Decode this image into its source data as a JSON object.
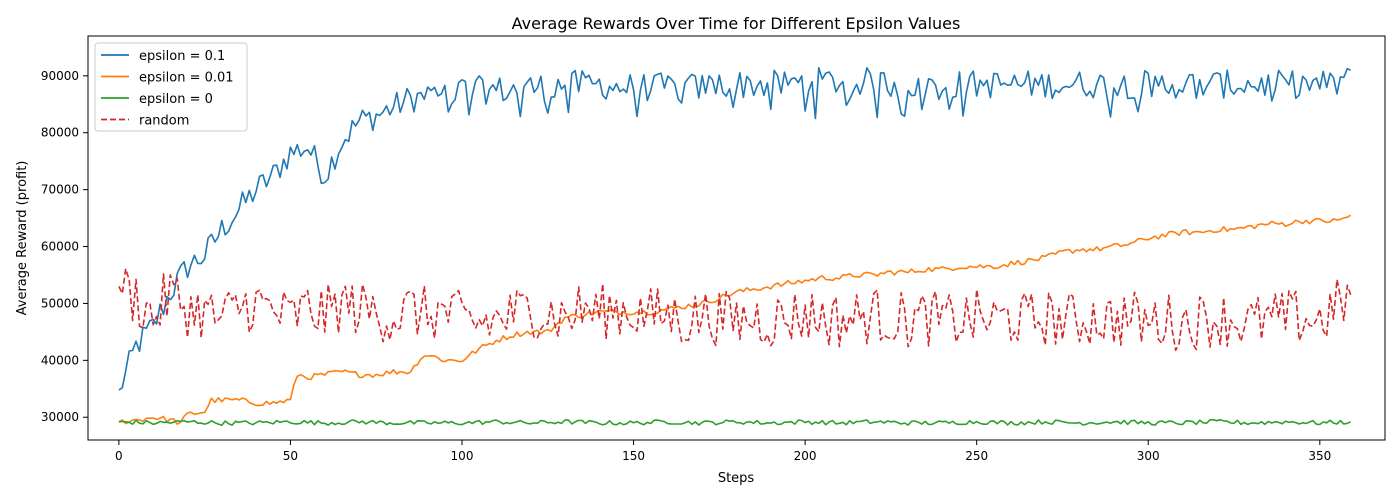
{
  "chart_data": {
    "type": "line",
    "title": "Average Rewards Over Time for Different Epsilon Values",
    "xlabel": "Steps",
    "ylabel": "Average Reward (profit)",
    "xlim": [
      -9,
      369
    ],
    "ylim": [
      26000,
      97000
    ],
    "x_ticks": [
      0,
      50,
      100,
      150,
      200,
      250,
      300,
      350
    ],
    "y_ticks": [
      30000,
      40000,
      50000,
      60000,
      70000,
      80000,
      90000
    ],
    "x_tick_labels": [
      "0",
      "50",
      "100",
      "150",
      "200",
      "250",
      "300",
      "350"
    ],
    "y_tick_labels": [
      "30000",
      "40000",
      "50000",
      "60000",
      "70000",
      "80000",
      "90000"
    ],
    "grid": false,
    "legend_position": "top-left",
    "num_steps": 360,
    "series": [
      {
        "name": "epsilon = 0.1",
        "color": "#1f77b4",
        "style": "solid",
        "x": [
          0,
          2,
          5,
          10,
          15,
          20,
          25,
          30,
          35,
          40,
          45,
          50,
          55,
          60,
          65,
          70,
          75,
          80,
          85,
          90,
          95,
          100,
          105,
          110,
          115,
          120,
          125,
          130,
          135,
          140,
          145,
          150,
          155,
          160,
          165,
          170,
          175,
          180,
          185,
          190,
          195,
          200,
          205,
          210,
          215,
          220,
          225,
          230,
          235,
          240,
          245,
          250,
          255,
          260,
          265,
          270,
          275,
          280,
          285,
          290,
          295,
          300,
          305,
          310,
          315,
          320,
          325,
          330,
          335,
          340,
          345,
          350,
          355,
          359
        ],
        "y": [
          34800,
          37500,
          42500,
          46000,
          52000,
          56500,
          58500,
          63000,
          66500,
          70000,
          72500,
          76500,
          77500,
          72500,
          78500,
          82000,
          83000,
          84500,
          86000,
          86500,
          86500,
          87500,
          87500,
          87500,
          87500,
          88000,
          88000,
          88500,
          88500,
          88500,
          88000,
          88000,
          88000,
          88000,
          88000,
          88000,
          88500,
          88500,
          88500,
          88500,
          88500,
          89000,
          89000,
          89000,
          89000,
          89000,
          88500,
          88500,
          88500,
          88500,
          88500,
          88500,
          88500,
          88500,
          88500,
          88500,
          88500,
          88500,
          88500,
          88500,
          88500,
          88500,
          88500,
          88500,
          88500,
          88500,
          88500,
          88500,
          88500,
          88500,
          88500,
          88500,
          88500,
          91000
        ]
      },
      {
        "name": "epsilon = 0.01",
        "color": "#ff7f0e",
        "style": "solid",
        "x": [
          0,
          5,
          10,
          15,
          18,
          20,
          25,
          27,
          30,
          35,
          40,
          45,
          50,
          52,
          55,
          60,
          65,
          70,
          75,
          80,
          85,
          88,
          90,
          95,
          100,
          105,
          110,
          115,
          120,
          125,
          130,
          135,
          140,
          145,
          150,
          155,
          160,
          165,
          170,
          175,
          180,
          185,
          190,
          195,
          200,
          205,
          210,
          215,
          220,
          225,
          230,
          235,
          240,
          245,
          250,
          255,
          260,
          265,
          270,
          275,
          280,
          285,
          290,
          295,
          300,
          305,
          310,
          315,
          320,
          325,
          330,
          335,
          340,
          345,
          350,
          355,
          359
        ],
        "y": [
          29200,
          29500,
          30000,
          29500,
          29000,
          30500,
          31000,
          33000,
          33000,
          33000,
          32500,
          32500,
          33000,
          37500,
          37000,
          37500,
          38000,
          37500,
          37500,
          38000,
          38000,
          40500,
          41000,
          40000,
          40000,
          42000,
          43500,
          44500,
          45000,
          45000,
          47500,
          48000,
          48500,
          48500,
          48500,
          48500,
          49000,
          49500,
          50000,
          51000,
          52000,
          52500,
          53000,
          53500,
          54000,
          54500,
          54500,
          55000,
          55000,
          55500,
          55500,
          56000,
          56000,
          56500,
          56500,
          56500,
          57000,
          57500,
          58000,
          59000,
          59500,
          59500,
          60000,
          60500,
          61500,
          62000,
          62500,
          62500,
          63000,
          63000,
          63500,
          64000,
          64000,
          64500,
          64500,
          64500,
          65500
        ]
      },
      {
        "name": "epsilon = 0",
        "color": "#2ca02c",
        "style": "solid",
        "x": [
          0,
          10,
          20,
          30,
          40,
          50,
          60,
          70,
          80,
          90,
          100,
          110,
          120,
          130,
          140,
          150,
          160,
          170,
          180,
          190,
          200,
          210,
          220,
          230,
          240,
          250,
          260,
          270,
          280,
          290,
          300,
          310,
          320,
          330,
          340,
          350,
          359
        ],
        "y": [
          29200,
          29000,
          29200,
          29000,
          29000,
          29200,
          29000,
          29200,
          29000,
          29000,
          29000,
          29200,
          29000,
          29200,
          29000,
          29000,
          29200,
          29000,
          29200,
          29000,
          29200,
          29000,
          29200,
          29000,
          29000,
          29200,
          29000,
          29200,
          29000,
          29200,
          29000,
          29000,
          29200,
          29000,
          29200,
          29000,
          29200
        ]
      },
      {
        "name": "random",
        "color": "#d62728",
        "style": "dashed",
        "x": [
          0,
          5,
          10,
          15,
          20,
          25,
          30,
          35,
          40,
          45,
          50,
          55,
          60,
          65,
          70,
          75,
          80,
          85,
          90,
          95,
          100,
          105,
          110,
          115,
          120,
          125,
          130,
          135,
          140,
          145,
          150,
          155,
          160,
          165,
          170,
          175,
          180,
          185,
          190,
          195,
          200,
          205,
          210,
          215,
          220,
          225,
          230,
          235,
          240,
          245,
          250,
          255,
          260,
          265,
          270,
          275,
          280,
          285,
          290,
          295,
          300,
          305,
          310,
          315,
          320,
          325,
          330,
          335,
          340,
          345,
          350,
          355,
          359
        ],
        "y": [
          53000,
          51000,
          47500,
          52000,
          49000,
          48500,
          47000,
          49500,
          50000,
          48500,
          47500,
          49000,
          48000,
          50000,
          49000,
          48500,
          47500,
          49000,
          48000,
          48500,
          47000,
          46500,
          47000,
          48000,
          49000,
          48500,
          47500,
          49000,
          48500,
          49000,
          48500,
          48000,
          48000,
          47000,
          48000,
          47500,
          47000,
          47500,
          47000,
          47500,
          48000,
          47500,
          47000,
          47500,
          48000,
          47500,
          47000,
          47500,
          47000,
          47000,
          47500,
          47000,
          47500,
          47000,
          47500,
          47000,
          47000,
          47500,
          47000,
          47500,
          46500,
          47000,
          46500,
          47000,
          47500,
          47000,
          46500,
          47000,
          47500,
          47500,
          47000,
          49500,
          51500
        ]
      }
    ]
  }
}
